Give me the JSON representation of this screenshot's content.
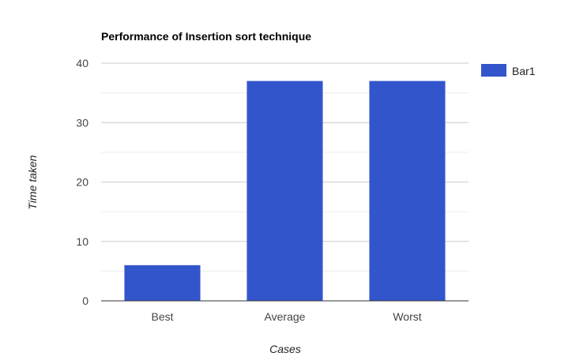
{
  "chart_data": {
    "type": "bar",
    "title": "Performance of Insertion sort technique",
    "xlabel": "Cases",
    "ylabel": "Time taken",
    "categories": [
      "Best",
      "Average",
      "Worst"
    ],
    "series": [
      {
        "name": "Bar1",
        "values": [
          6,
          37,
          37
        ],
        "color": "#3355cc"
      }
    ],
    "ylim": [
      0,
      40
    ],
    "yticks": [
      0,
      10,
      20,
      30,
      40
    ],
    "ytick_labels": [
      "0",
      "10",
      "20",
      "30",
      "40"
    ],
    "minor_gridlines": true,
    "grid": true,
    "legend": "right"
  }
}
